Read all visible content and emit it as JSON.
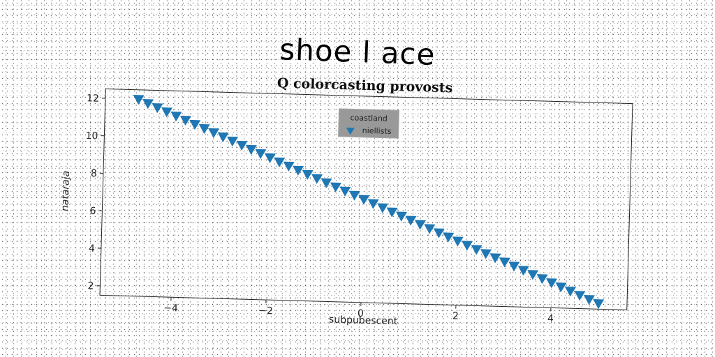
{
  "page": {
    "title": "shoe l ace"
  },
  "chart_data": {
    "type": "scatter",
    "title": "Q colorcasting provosts",
    "xlabel": "subpubescent",
    "ylabel": "nataraja",
    "xlim": [
      -5.5,
      5.6
    ],
    "ylim": [
      1.5,
      12.5
    ],
    "xticks": [
      -4,
      -2,
      0,
      2,
      4
    ],
    "xtick_labels": [
      "−4",
      "−2",
      "0",
      "2",
      "4"
    ],
    "yticks": [
      2,
      4,
      6,
      8,
      10,
      12
    ],
    "ytick_labels": [
      "2",
      "4",
      "6",
      "8",
      "10",
      "12"
    ],
    "grid": false,
    "legend": {
      "title": "coastland",
      "placement": "upper center",
      "entries": [
        "niellists"
      ]
    },
    "series": [
      {
        "name": "niellists",
        "marker": "triangle-down",
        "color": "#1f77b4",
        "points": {
          "x_start": -4.8,
          "x_end": 5.0,
          "y_start": 12.0,
          "y_end": 1.8,
          "count": 50
        }
      }
    ]
  }
}
